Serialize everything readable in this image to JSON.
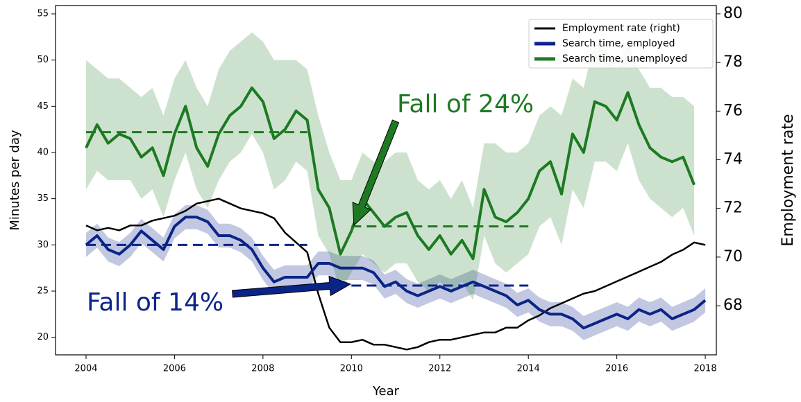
{
  "chart_data": {
    "type": "line",
    "x": [
      2004,
      2004.25,
      2004.5,
      2004.75,
      2005,
      2005.25,
      2005.5,
      2005.75,
      2006,
      2006.25,
      2006.5,
      2006.75,
      2007,
      2007.25,
      2007.5,
      2007.75,
      2008,
      2008.25,
      2008.5,
      2008.75,
      2009,
      2009.25,
      2009.5,
      2009.75,
      2010,
      2010.25,
      2010.5,
      2010.75,
      2011,
      2011.25,
      2011.5,
      2011.75,
      2012,
      2012.25,
      2012.5,
      2012.75,
      2013,
      2013.25,
      2013.5,
      2013.75,
      2014,
      2014.25,
      2014.5,
      2014.75,
      2015,
      2015.25,
      2015.5,
      2015.75,
      2016,
      2016.25,
      2016.5,
      2016.75,
      2017,
      2017.25,
      2017.5,
      2017.75,
      2018
    ],
    "series": [
      {
        "name": "Employment rate (right)",
        "color": "#000000",
        "axis": "y2",
        "values": [
          71.3,
          71.1,
          71.2,
          71.1,
          71.3,
          71.3,
          71.5,
          71.6,
          71.7,
          71.9,
          72.2,
          72.3,
          72.4,
          72.2,
          72.0,
          71.9,
          71.8,
          71.6,
          71.0,
          70.6,
          70.2,
          68.5,
          67.1,
          66.5,
          66.5,
          66.6,
          66.4,
          66.4,
          66.3,
          66.2,
          66.3,
          66.5,
          66.6,
          66.6,
          66.7,
          66.8,
          66.9,
          66.9,
          67.1,
          67.1,
          67.4,
          67.6,
          67.9,
          68.1,
          68.3,
          68.5,
          68.6,
          68.8,
          69.0,
          69.2,
          69.4,
          69.6,
          69.8,
          70.1,
          70.3,
          70.6,
          70.5
        ]
      },
      {
        "name": "Search time, employed",
        "color": "#0b2488",
        "values": [
          30,
          31,
          29.5,
          29,
          30,
          31.5,
          30.5,
          29.5,
          32,
          33,
          33,
          32.5,
          31,
          31,
          30.5,
          29.5,
          27.5,
          26,
          26.5,
          26.5,
          26.5,
          28,
          28,
          27.5,
          27.5,
          27.5,
          27,
          25.5,
          26,
          25,
          24.5,
          25,
          25.5,
          25,
          25.5,
          26,
          25.5,
          25,
          24.5,
          23.5,
          24,
          23,
          22.5,
          22.5,
          22,
          21,
          21.5,
          22,
          22.5,
          22,
          23,
          22.5,
          23,
          22,
          22.5,
          23,
          24
        ],
        "upper": [
          31.3,
          32.3,
          30.8,
          30.3,
          31.3,
          32.8,
          31.8,
          30.8,
          33.3,
          34.3,
          34.3,
          33.8,
          32.3,
          32.3,
          31.8,
          30.8,
          28.8,
          27.3,
          27.8,
          27.8,
          27.8,
          29.3,
          29.3,
          28.8,
          28.8,
          28.8,
          28.3,
          26.8,
          27.3,
          26.3,
          25.8,
          26.3,
          26.8,
          26.3,
          26.8,
          27.3,
          26.8,
          26.3,
          25.8,
          24.8,
          25.3,
          24.3,
          23.8,
          23.8,
          23.3,
          22.3,
          22.8,
          23.3,
          23.8,
          23.3,
          24.3,
          23.8,
          24.3,
          23.3,
          23.8,
          24.3,
          25.3
        ],
        "lower": [
          28.7,
          29.7,
          28.2,
          27.7,
          28.7,
          30.2,
          29.2,
          28.2,
          30.7,
          31.7,
          31.7,
          31.2,
          29.7,
          29.7,
          29.2,
          28.2,
          26.2,
          24.7,
          25.2,
          25.2,
          25.2,
          26.7,
          26.7,
          26.2,
          26.2,
          26.2,
          25.7,
          24.2,
          24.7,
          23.7,
          23.2,
          23.7,
          24.2,
          23.7,
          24.2,
          24.7,
          24.2,
          23.7,
          23.2,
          22.2,
          22.7,
          21.7,
          21.2,
          21.2,
          20.7,
          19.7,
          20.2,
          20.7,
          21.2,
          20.7,
          21.7,
          21.2,
          21.7,
          20.7,
          21.2,
          21.7,
          22.7
        ]
      },
      {
        "name": "Search time, unemployed",
        "color": "#1d7a22",
        "values": [
          40.5,
          43,
          41,
          42,
          41.5,
          39.5,
          40.5,
          37.5,
          42,
          45,
          40.5,
          38.5,
          42,
          44,
          45,
          47,
          45.5,
          41.5,
          42.5,
          44.5,
          43.5,
          36,
          34,
          29,
          31.5,
          35,
          33.5,
          32,
          33,
          33.5,
          31,
          29.5,
          31,
          29,
          30.5,
          28.5,
          36,
          33,
          32.5,
          33.5,
          35,
          38,
          39,
          35.5,
          42,
          40,
          45.5,
          45,
          43.5,
          46.5,
          43,
          40.5,
          39.5,
          39,
          39.5,
          36.5,
          null
        ],
        "upper": [
          50,
          49,
          48,
          48,
          47,
          46,
          47,
          44,
          48,
          50,
          47,
          45,
          49,
          51,
          52,
          53,
          52,
          50,
          50,
          50,
          49,
          44,
          40,
          37,
          37,
          40,
          39,
          39,
          40,
          40,
          37,
          36,
          37,
          35,
          37,
          34,
          41,
          41,
          40,
          40,
          41,
          44,
          45,
          44,
          48,
          47,
          52,
          51,
          49,
          52,
          49,
          47,
          47,
          46,
          46,
          45,
          null
        ],
        "lower": [
          36,
          38,
          37,
          37,
          37,
          35,
          36,
          33,
          37,
          40,
          36,
          34,
          37,
          39,
          40,
          42,
          40,
          36,
          37,
          39,
          38,
          31,
          29,
          25,
          27,
          29,
          28,
          27,
          28,
          28,
          26,
          25,
          26,
          25,
          26,
          24,
          31,
          28,
          27,
          28,
          29,
          32,
          33,
          30,
          36,
          34,
          39,
          39,
          38,
          41,
          37,
          35,
          34,
          33,
          34,
          31,
          null
        ]
      }
    ],
    "reference_lines": [
      {
        "color": "#1d7a22",
        "x": [
          2004,
          2009
        ],
        "y": 42.2
      },
      {
        "color": "#1d7a22",
        "x": [
          2010,
          2014
        ],
        "y": 32
      },
      {
        "color": "#0b2488",
        "x": [
          2004,
          2009
        ],
        "y": 30
      },
      {
        "color": "#0b2488",
        "x": [
          2010,
          2014
        ],
        "y": 25.6
      }
    ],
    "annotations": [
      {
        "text": "Fall of 24%",
        "color": "#1d7a22"
      },
      {
        "text": "Fall of 14%",
        "color": "#0b2488"
      }
    ],
    "xlabel": "Year",
    "ylabel": "Minutes per day",
    "y2label": "Employment rate",
    "xlim": [
      2003.31,
      2018.25
    ],
    "xticks": [
      2004,
      2006,
      2008,
      2010,
      2012,
      2014,
      2016,
      2018
    ],
    "ylim": [
      18.1,
      55.9
    ],
    "yticks": [
      20,
      25,
      30,
      35,
      40,
      45,
      50,
      55
    ],
    "y2lim": [
      65.98,
      80.34
    ],
    "y2ticks": [
      68,
      70,
      72,
      74,
      76,
      78,
      80
    ],
    "legend": "upper right"
  }
}
